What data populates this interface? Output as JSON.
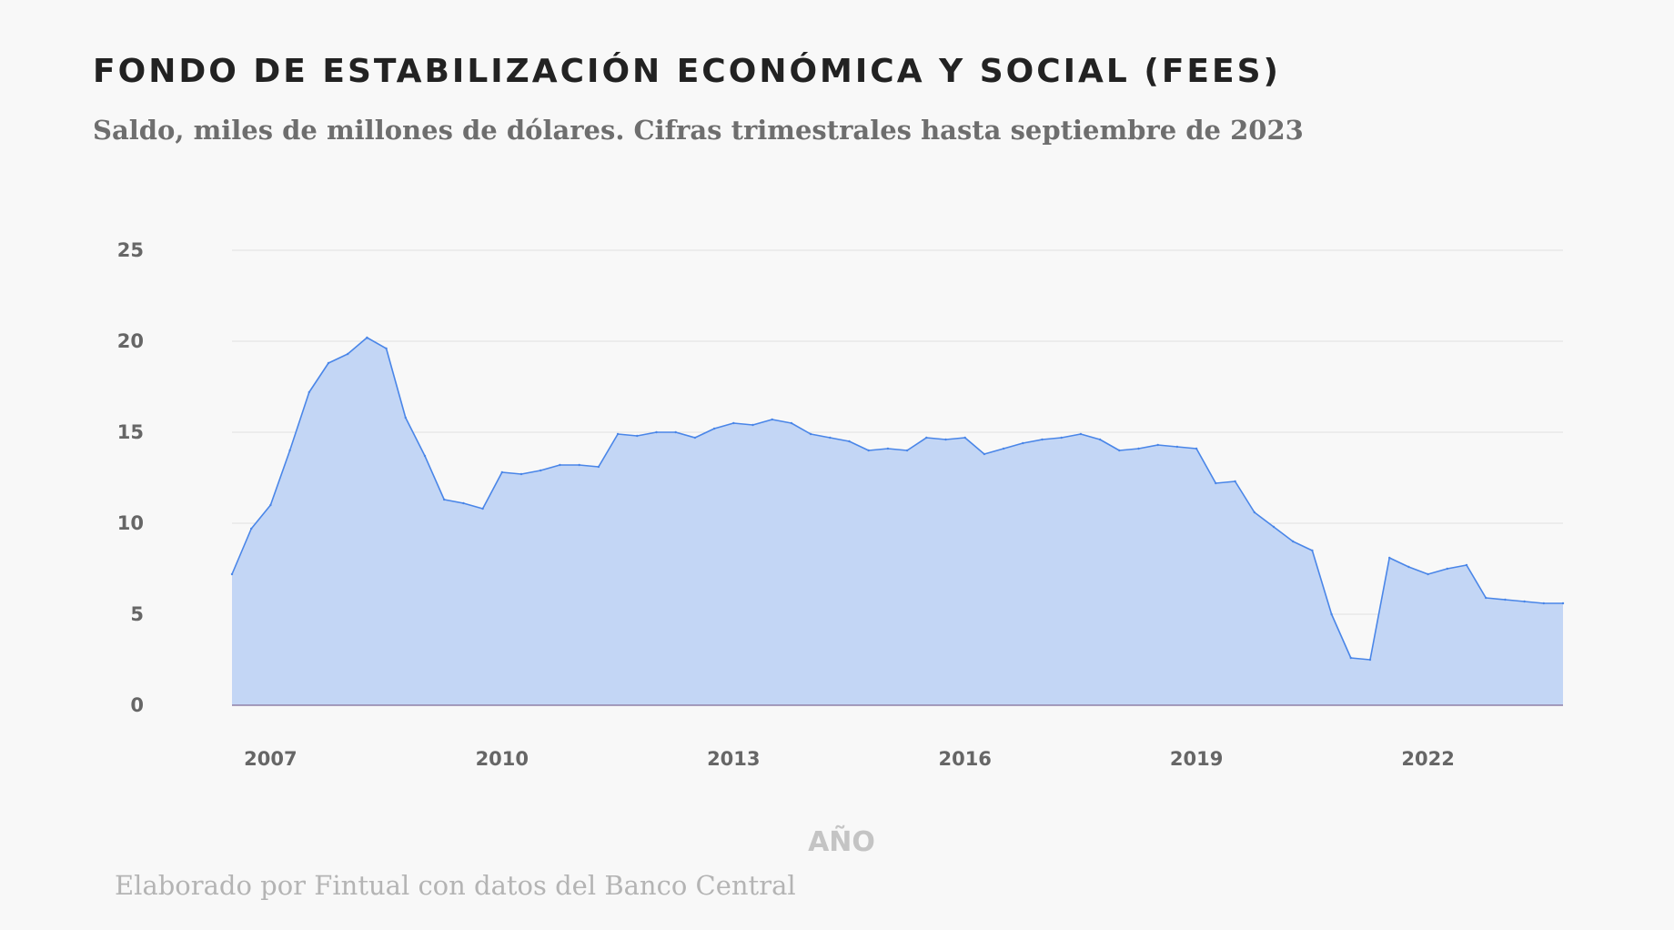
{
  "title": "FONDO DE ESTABILIZACIÓN ECONÓMICA Y SOCIAL (FEES)",
  "subtitle": "Saldo, miles de millones de dólares. Cifras trimestrales hasta septiembre de 2023",
  "source": "Elaborado por Fintual con datos del Banco Central",
  "colors": {
    "line": "#4a86e8",
    "fill": "#c3d6f5",
    "grid": "#e0e0e0",
    "baseline": "#8f80a8"
  },
  "chart_data": {
    "type": "area",
    "title": "FONDO DE ESTABILIZACIÓN ECONÓMICA Y SOCIAL (FEES)",
    "xlabel": "AÑO",
    "ylabel": "",
    "ylim": [
      0,
      25
    ],
    "y_ticks": [
      0,
      5,
      10,
      15,
      20,
      25
    ],
    "x_tick_labels": [
      "2007",
      "2010",
      "2013",
      "2016",
      "2019",
      "2022"
    ],
    "x_range": [
      2006.5,
      2023.75
    ],
    "grid": true,
    "legend": "none",
    "x": [
      2006.5,
      2006.75,
      2007.0,
      2007.25,
      2007.5,
      2007.75,
      2008.0,
      2008.25,
      2008.5,
      2008.75,
      2009.0,
      2009.25,
      2009.5,
      2009.75,
      2010.0,
      2010.25,
      2010.5,
      2010.75,
      2011.0,
      2011.25,
      2011.5,
      2011.75,
      2012.0,
      2012.25,
      2012.5,
      2012.75,
      2013.0,
      2013.25,
      2013.5,
      2013.75,
      2014.0,
      2014.25,
      2014.5,
      2014.75,
      2015.0,
      2015.25,
      2015.5,
      2015.75,
      2016.0,
      2016.25,
      2016.5,
      2016.75,
      2017.0,
      2017.25,
      2017.5,
      2017.75,
      2018.0,
      2018.25,
      2018.5,
      2018.75,
      2019.0,
      2019.25,
      2019.5,
      2019.75,
      2020.0,
      2020.25,
      2020.5,
      2020.75,
      2021.0,
      2021.25,
      2021.5,
      2021.75,
      2022.0,
      2022.25,
      2022.5,
      2022.75,
      2023.0,
      2023.25,
      2023.5,
      2023.75
    ],
    "series": [
      {
        "values": [
          7.2,
          9.7,
          11.0,
          14.0,
          17.2,
          18.8,
          19.3,
          20.2,
          19.6,
          15.8,
          13.7,
          11.3,
          11.1,
          10.8,
          12.8,
          12.7,
          12.9,
          13.2,
          13.2,
          13.1,
          14.9,
          14.8,
          15.0,
          15.0,
          14.7,
          15.2,
          15.5,
          15.4,
          15.7,
          15.5,
          14.9,
          14.7,
          14.5,
          14.0,
          14.1,
          14.0,
          14.7,
          14.6,
          14.7,
          13.8,
          14.1,
          14.4,
          14.6,
          14.7,
          14.9,
          14.6,
          14.0,
          14.1,
          14.3,
          14.2,
          14.1,
          12.2,
          12.3,
          10.6,
          9.8,
          9.0,
          8.5,
          5.0,
          2.6,
          2.5,
          8.1,
          7.6,
          7.2,
          7.5,
          7.7,
          5.9,
          5.8,
          5.7,
          5.6,
          5.6
        ]
      }
    ]
  }
}
